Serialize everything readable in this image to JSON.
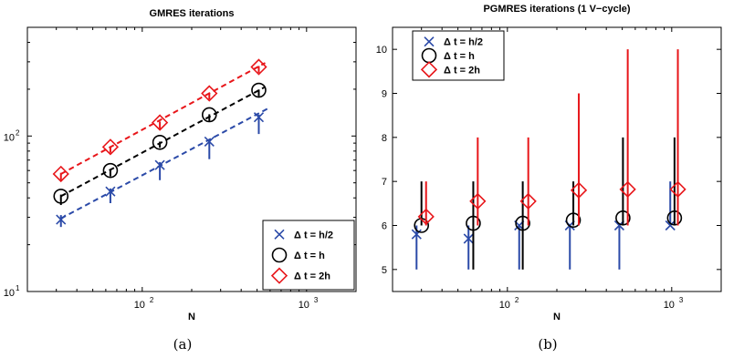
{
  "chart_data": [
    {
      "type": "scatter",
      "panel": "a",
      "title": "GMRES iterations",
      "xlabel": "N",
      "ylabel": "",
      "xscale": "log",
      "yscale": "log",
      "xlim": [
        20,
        2000
      ],
      "ylim": [
        10,
        500
      ],
      "xticks": [
        {
          "base": "10",
          "exp": "2",
          "value": 100
        },
        {
          "base": "10",
          "exp": "3",
          "value": 1000
        }
      ],
      "yticks": [
        {
          "base": "10",
          "exp": "1",
          "value": 10
        },
        {
          "base": "10",
          "exp": "2",
          "value": 100
        }
      ],
      "grid": false,
      "legend_position": "bottom-right",
      "caption": "(a)",
      "series": [
        {
          "name": "Δ t = h/2",
          "marker": "x",
          "color": "#2b4aa8",
          "x": [
            32,
            64,
            128,
            256,
            512
          ],
          "y": [
            29,
            44,
            65,
            92,
            132
          ],
          "err_low": [
            26,
            37,
            52,
            71,
            103
          ],
          "err_high": [
            31,
            46,
            68,
            95,
            137
          ],
          "fit": {
            "x": [
              32,
              580
            ],
            "y": [
              29.5,
              150
            ]
          }
        },
        {
          "name": "Δ t = h",
          "marker": "o",
          "color": "#000000",
          "x": [
            32,
            64,
            128,
            256,
            512
          ],
          "y": [
            41,
            60,
            91,
            137,
            197
          ],
          "err_low": [
            36,
            55,
            84,
            124,
            180
          ],
          "err_high": [
            42,
            61,
            92,
            138,
            199
          ],
          "fit": {
            "x": [
              32,
              560
            ],
            "y": [
              41,
              207
            ]
          }
        },
        {
          "name": "Δ t = 2h",
          "marker": "d",
          "color": "#e8161a",
          "x": [
            32,
            64,
            128,
            256,
            512
          ],
          "y": [
            57,
            85,
            122,
            188,
            278
          ],
          "err_low": [
            52,
            78,
            111,
            172,
            255
          ],
          "err_high": [
            58,
            86,
            124,
            190,
            282
          ],
          "fit": {
            "x": [
              32,
              560
            ],
            "y": [
              57,
              295
            ]
          }
        }
      ]
    },
    {
      "type": "scatter",
      "panel": "b",
      "title": "PGMRES iterations (1 V−cycle)",
      "xlabel": "N",
      "ylabel": "",
      "xscale": "log",
      "yscale": "linear",
      "xlim": [
        20,
        2000
      ],
      "ylim": [
        4.5,
        10.5
      ],
      "xticks": [
        {
          "base": "10",
          "exp": "2",
          "value": 100
        },
        {
          "base": "10",
          "exp": "3",
          "value": 1000
        }
      ],
      "yticks": [
        "5",
        "6",
        "7",
        "8",
        "9",
        "10"
      ],
      "grid": false,
      "legend_position": "top-left",
      "caption": "(b)",
      "series": [
        {
          "name": "Δ t = h/2",
          "marker": "x",
          "color": "#2b4aa8",
          "x": [
            28,
            58,
            118,
            240,
            480,
            980
          ],
          "y": [
            5.8,
            5.7,
            6.0,
            6.0,
            6.0,
            6.0
          ],
          "err_low": [
            5,
            5,
            5,
            5,
            5,
            6
          ],
          "err_high": [
            6,
            6,
            6,
            6,
            6,
            7
          ]
        },
        {
          "name": "Δ t = h",
          "marker": "o",
          "color": "#000000",
          "x": [
            30,
            62,
            124,
            252,
            505,
            1040
          ],
          "y": [
            6.0,
            6.05,
            6.05,
            6.12,
            6.17,
            6.17
          ],
          "err_low": [
            6,
            5,
            5,
            6,
            6,
            6
          ],
          "err_high": [
            7,
            7,
            7,
            7,
            8,
            8
          ]
        },
        {
          "name": "Δ t = 2h",
          "marker": "d",
          "color": "#e8161a",
          "x": [
            32,
            66,
            134,
            272,
            540,
            1090
          ],
          "y": [
            6.2,
            6.55,
            6.55,
            6.8,
            6.82,
            6.82
          ],
          "err_low": [
            6,
            6,
            6,
            6,
            6,
            6
          ],
          "err_high": [
            7,
            8,
            8,
            9,
            10,
            10
          ]
        }
      ]
    }
  ]
}
